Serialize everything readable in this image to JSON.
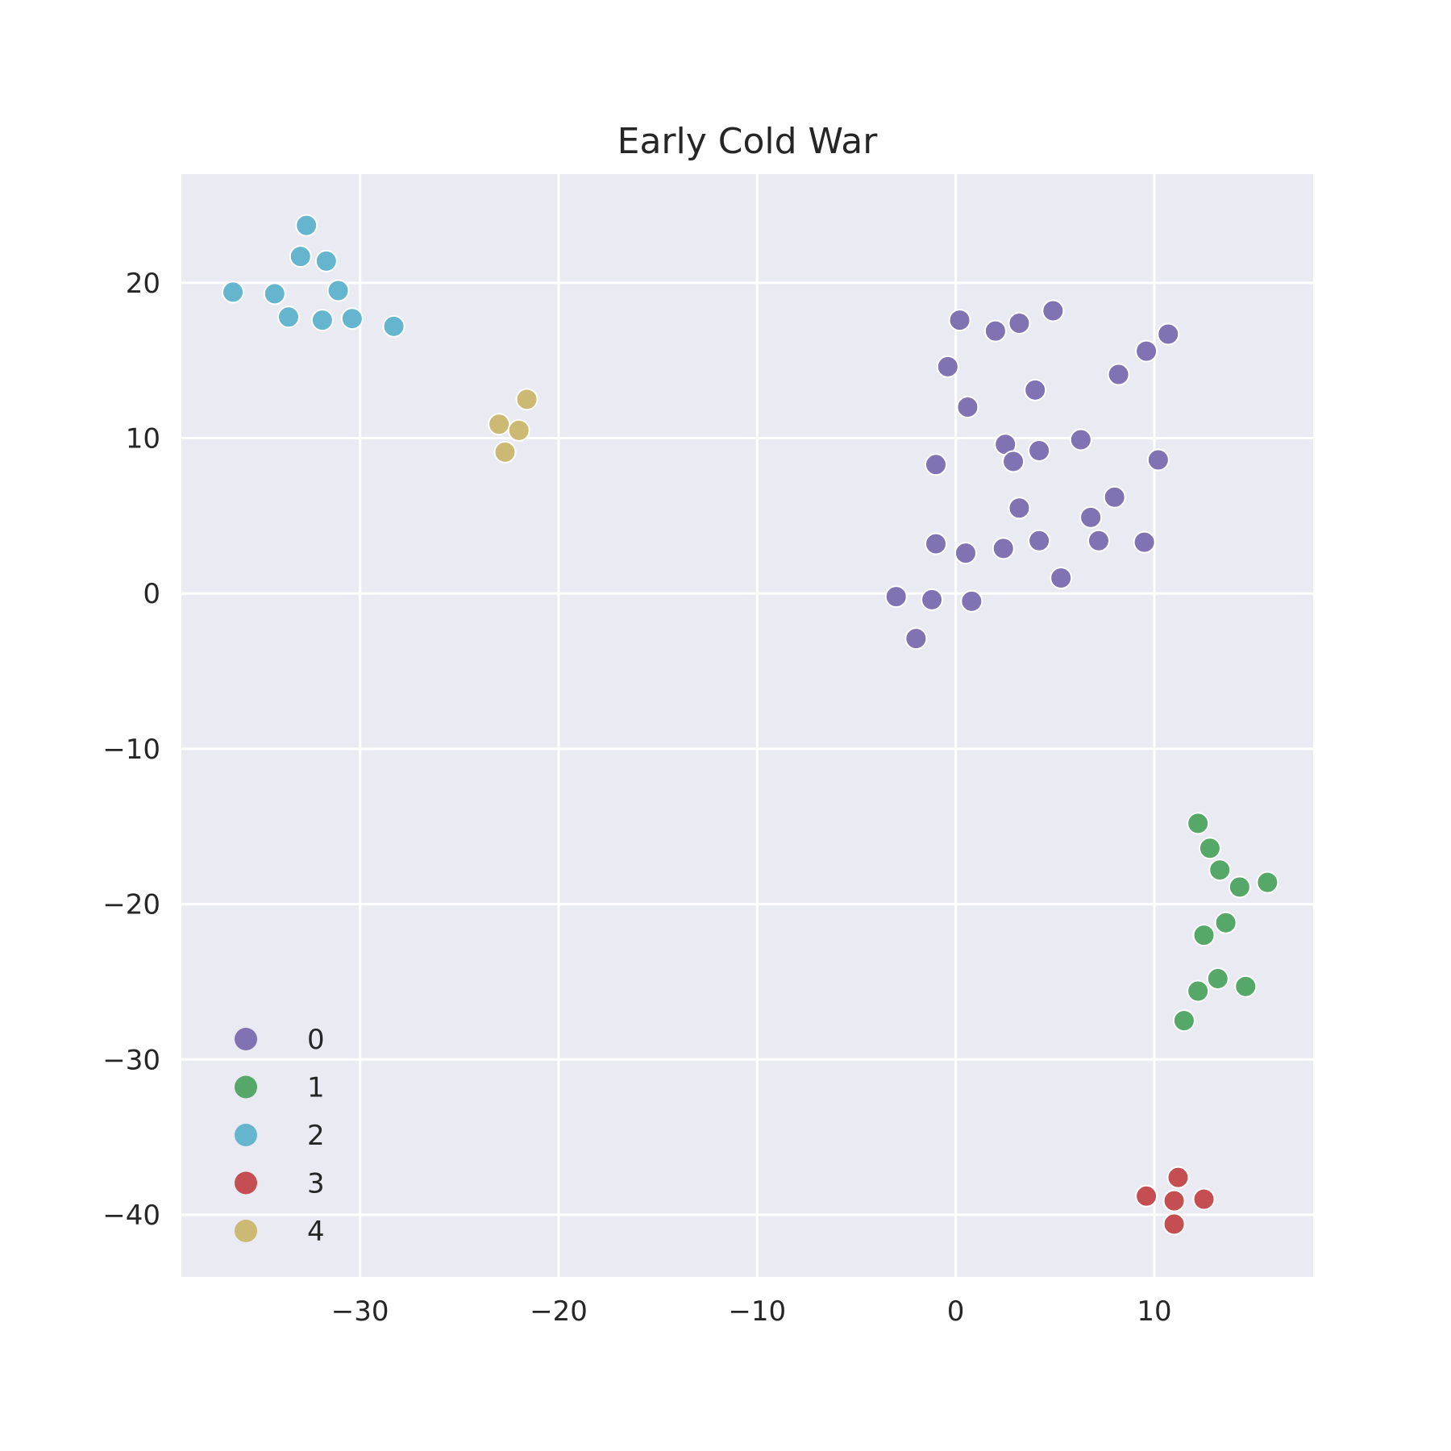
{
  "chart_data": {
    "type": "scatter",
    "title": "Early Cold War",
    "xlabel": "",
    "ylabel": "",
    "xlim": [
      -39,
      18
    ],
    "ylim": [
      -44,
      27
    ],
    "x_ticks": [
      -30,
      -20,
      -10,
      0,
      10
    ],
    "y_ticks": [
      20,
      10,
      0,
      -10,
      -20,
      -30,
      -40
    ],
    "x_tick_labels": [
      "−30",
      "−20",
      "−10",
      "0",
      "10"
    ],
    "y_tick_labels": [
      "20",
      "10",
      "0",
      "−10",
      "−20",
      "−30",
      "−40"
    ],
    "grid": true,
    "legend_position": "bottom-left",
    "series": [
      {
        "name": "0",
        "color": "#8172b3",
        "points": [
          [
            0.2,
            17.6
          ],
          [
            2.0,
            16.9
          ],
          [
            3.2,
            17.4
          ],
          [
            4.9,
            18.2
          ],
          [
            -0.4,
            14.6
          ],
          [
            4.0,
            13.1
          ],
          [
            10.7,
            16.7
          ],
          [
            9.6,
            15.6
          ],
          [
            8.2,
            14.1
          ],
          [
            0.6,
            12.0
          ],
          [
            2.5,
            9.6
          ],
          [
            4.2,
            9.2
          ],
          [
            6.3,
            9.9
          ],
          [
            2.9,
            8.5
          ],
          [
            -1.0,
            8.3
          ],
          [
            10.2,
            8.6
          ],
          [
            3.2,
            5.5
          ],
          [
            8.0,
            6.2
          ],
          [
            6.8,
            4.9
          ],
          [
            -1.0,
            3.2
          ],
          [
            0.5,
            2.6
          ],
          [
            2.4,
            2.9
          ],
          [
            4.2,
            3.4
          ],
          [
            7.2,
            3.4
          ],
          [
            9.5,
            3.3
          ],
          [
            5.3,
            1.0
          ],
          [
            -3.0,
            -0.2
          ],
          [
            -1.2,
            -0.4
          ],
          [
            0.8,
            -0.5
          ],
          [
            -2.0,
            -2.9
          ]
        ]
      },
      {
        "name": "1",
        "color": "#55a868",
        "points": [
          [
            12.2,
            -14.8
          ],
          [
            12.8,
            -16.4
          ],
          [
            13.3,
            -17.8
          ],
          [
            14.3,
            -18.9
          ],
          [
            15.7,
            -18.6
          ],
          [
            13.6,
            -21.2
          ],
          [
            12.5,
            -22.0
          ],
          [
            13.2,
            -24.8
          ],
          [
            12.2,
            -25.6
          ],
          [
            14.6,
            -25.3
          ],
          [
            11.5,
            -27.5
          ]
        ]
      },
      {
        "name": "2",
        "color": "#64b5cd",
        "points": [
          [
            -32.7,
            23.7
          ],
          [
            -33.0,
            21.7
          ],
          [
            -31.7,
            21.4
          ],
          [
            -36.4,
            19.4
          ],
          [
            -34.3,
            19.3
          ],
          [
            -31.1,
            19.5
          ],
          [
            -33.6,
            17.8
          ],
          [
            -31.9,
            17.6
          ],
          [
            -30.4,
            17.7
          ],
          [
            -28.3,
            17.2
          ]
        ]
      },
      {
        "name": "3",
        "color": "#c44e52",
        "points": [
          [
            11.2,
            -37.6
          ],
          [
            9.6,
            -38.8
          ],
          [
            11.0,
            -39.1
          ],
          [
            12.5,
            -39.0
          ],
          [
            11.0,
            -40.6
          ]
        ]
      },
      {
        "name": "4",
        "color": "#ccb974",
        "points": [
          [
            -21.6,
            12.5
          ],
          [
            -23.0,
            10.9
          ],
          [
            -22.0,
            10.5
          ],
          [
            -22.7,
            9.1
          ]
        ]
      }
    ]
  }
}
